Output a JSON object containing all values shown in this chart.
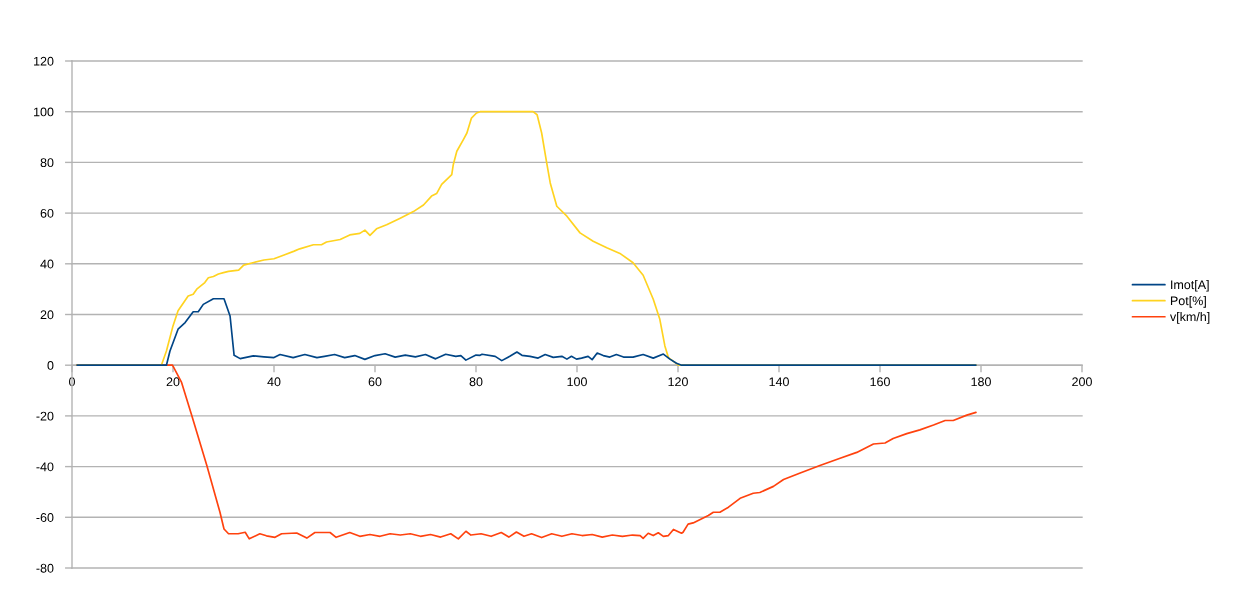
{
  "chart_data": {
    "type": "line",
    "xlim": [
      0,
      200
    ],
    "ylim": [
      -80,
      120
    ],
    "xticks": [
      0,
      20,
      40,
      60,
      80,
      100,
      120,
      140,
      160,
      180,
      200
    ],
    "yticks": [
      -80,
      -60,
      -40,
      -20,
      0,
      20,
      40,
      60,
      80,
      100,
      120
    ],
    "grid": "y",
    "legend": "right",
    "series": [
      {
        "name": "Imot[A]",
        "color": "#004586",
        "x": [
          1,
          18.7,
          19.4,
          21,
          22.4,
          24,
          25,
          26,
          28,
          30.1,
          31.3,
          32.1,
          33.3,
          35.9,
          38,
          40,
          41.2,
          43.8,
          46.1,
          48.5,
          50,
          52,
          54,
          56,
          58,
          60,
          62,
          64,
          66,
          68,
          70,
          72,
          74,
          76,
          77,
          78,
          80,
          80.8,
          81.2,
          83.8,
          85.1,
          86.7,
          88.1,
          89.1,
          90.7,
          92.3,
          93.7,
          95.3,
          97,
          98,
          98.9,
          99.9,
          100.9,
          102.2,
          103,
          104,
          105.2,
          106.5,
          107.8,
          109.2,
          111.1,
          113.1,
          115.1,
          117.1,
          118.4,
          119.7,
          120.7,
          179
        ],
        "values": [
          0,
          0,
          5.6,
          14.2,
          16.8,
          21.1,
          21.1,
          24,
          26.2,
          26.2,
          19.4,
          3.9,
          2.6,
          3.7,
          3.3,
          3,
          4.2,
          3,
          4.2,
          3,
          3.5,
          4.2,
          3,
          3.8,
          2.3,
          3.8,
          4.5,
          3.2,
          4,
          3.3,
          4.2,
          2.5,
          4.3,
          3.5,
          3.8,
          2,
          4,
          3.9,
          4.3,
          3.5,
          1.8,
          3.5,
          5.2,
          3.9,
          3.5,
          2.8,
          4.2,
          3.1,
          3.5,
          2.4,
          3.5,
          2.4,
          2.8,
          3.5,
          2.2,
          4.8,
          3.8,
          3.2,
          4.2,
          3.2,
          3.2,
          4.2,
          2.8,
          4.4,
          2.4,
          0.8,
          0,
          0
        ]
      },
      {
        "name": "Pot[%]",
        "color": "#ffd320",
        "x": [
          1,
          17.7,
          18.7,
          20,
          21,
          23,
          24,
          24.7,
          26.3,
          27,
          28,
          29,
          30,
          31,
          33,
          34,
          36,
          38,
          40,
          42,
          44,
          45.1,
          47.8,
          49.4,
          50.4,
          53.1,
          55,
          57,
          58,
          59,
          60.3,
          62.3,
          65,
          67.6,
          69.6,
          71.2,
          72.2,
          73.2,
          75.2,
          75.5,
          76.2,
          77.5,
          78.2,
          79.1,
          80.1,
          80.8,
          91.3,
          92.1,
          93,
          94,
          94.7,
          96,
          98,
          100.6,
          103.2,
          105.9,
          108.5,
          111.1,
          113.1,
          115.1,
          116.4,
          117.4,
          118.1,
          120.1,
          179
        ],
        "values": [
          0,
          0,
          5.6,
          15.5,
          21.5,
          27.3,
          28,
          30,
          32.6,
          34.5,
          35,
          36,
          36.5,
          37,
          37.5,
          39.5,
          40.5,
          41.5,
          42,
          43.5,
          45,
          45.9,
          47.5,
          47.5,
          48.6,
          49.6,
          51.4,
          52,
          53.3,
          51.2,
          53.8,
          55.4,
          58,
          60.6,
          63.2,
          66.7,
          67.7,
          71.3,
          75.2,
          79.1,
          84.4,
          89,
          91.6,
          97.5,
          99.5,
          100,
          100,
          98.8,
          91.6,
          79.8,
          71.9,
          62.7,
          58.8,
          52.2,
          48.9,
          46.3,
          44.1,
          40.4,
          35.5,
          26,
          18.1,
          7.6,
          3,
          0,
          0
        ]
      },
      {
        "name": "v[km/h]",
        "color": "#ff420e",
        "x": [
          1,
          19.9,
          21.7,
          23.7,
          26.7,
          29.3,
          30.1,
          31,
          32.9,
          34.3,
          35.1,
          37.2,
          38.5,
          40.2,
          41.5,
          44.5,
          46.5,
          48.1,
          51.1,
          52.3,
          55,
          57,
          59,
          61,
          63,
          65,
          67,
          69,
          71,
          73,
          75,
          76.5,
          78,
          79,
          81,
          83,
          85,
          86.5,
          88,
          89.5,
          91,
          93,
          95,
          97,
          99,
          101,
          103,
          105,
          107,
          109,
          111,
          112.5,
          113.1,
          114.1,
          115.1,
          116.1,
          117.1,
          118.1,
          119.1,
          120.7,
          121,
          122,
          123,
          126,
          127,
          128.3,
          130,
          132.3,
          134.9,
          136.2,
          138.9,
          140.9,
          144.2,
          148.1,
          152.1,
          155.4,
          158.7,
          161,
          162.6,
          165.3,
          167.9,
          170.6,
          172.9,
          174.5,
          177.2,
          179
        ],
        "values": [
          0,
          0,
          -6.8,
          -19.7,
          -39.6,
          -58,
          -64.6,
          -66.5,
          -66.5,
          -65.9,
          -68.5,
          -66.5,
          -67.3,
          -67.9,
          -66.5,
          -66.2,
          -68.2,
          -66,
          -66,
          -67.9,
          -66,
          -67.5,
          -66.8,
          -67.5,
          -66.5,
          -67,
          -66.5,
          -67.5,
          -66.8,
          -67.8,
          -66.5,
          -68.5,
          -65.5,
          -67,
          -66.5,
          -67.5,
          -66,
          -67.8,
          -65.8,
          -67.5,
          -66.5,
          -68,
          -66.5,
          -67.5,
          -66.5,
          -67.2,
          -66.8,
          -67.8,
          -67,
          -67.5,
          -67,
          -67.2,
          -68.3,
          -66.3,
          -67.2,
          -66.1,
          -67.5,
          -67.2,
          -64.8,
          -66.3,
          -65.9,
          -62.7,
          -62.2,
          -59.3,
          -58,
          -58,
          -56,
          -52.5,
          -50.5,
          -50.2,
          -47.8,
          -45.1,
          -42.5,
          -39.6,
          -36.7,
          -34.4,
          -31.1,
          -30.7,
          -28.9,
          -27,
          -25.5,
          -23.6,
          -21.8,
          -21.8,
          -19.7,
          -18.6
        ]
      }
    ]
  }
}
